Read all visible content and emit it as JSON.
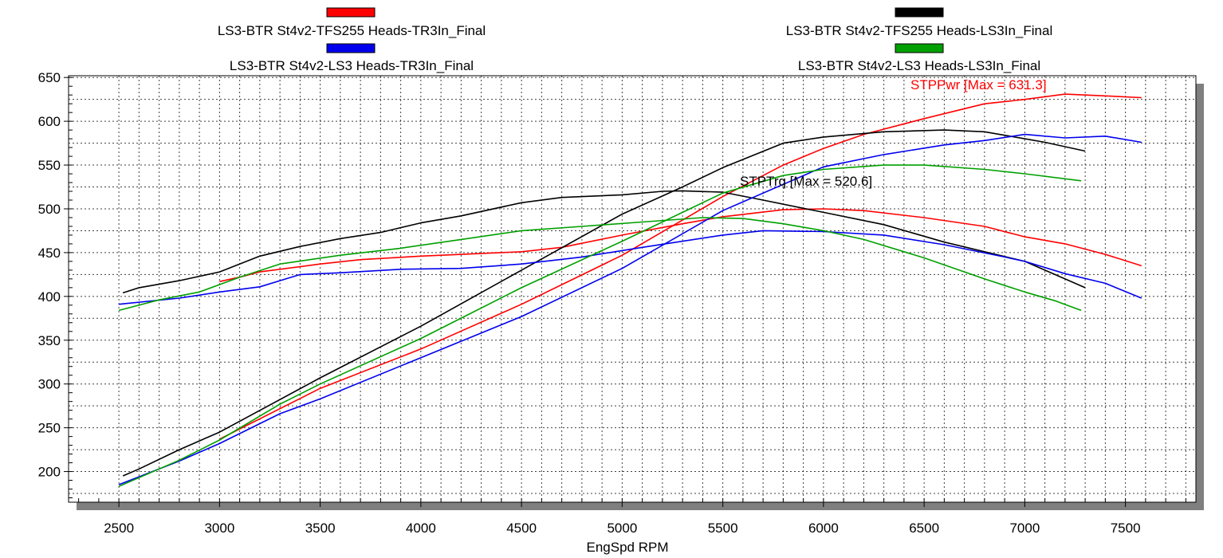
{
  "chart_data": {
    "type": "line",
    "title": "",
    "xlabel": "EngSpd RPM",
    "ylabel": "",
    "xlim": [
      2250,
      7850
    ],
    "ylim": [
      165,
      652
    ],
    "xticks": [
      2500,
      3000,
      3500,
      4000,
      4500,
      5000,
      5500,
      6000,
      6500,
      7000,
      7500
    ],
    "yticks": [
      200,
      250,
      300,
      350,
      400,
      450,
      500,
      550,
      600,
      650
    ],
    "grid": true,
    "legend_position": "top",
    "annotations": [
      {
        "text": "STPPwr [Max = 631.3]",
        "color": "#ff0000",
        "x": 7200,
        "y": 631.3
      },
      {
        "text": "STPTrq [Max = 520.6]",
        "color": "#000000",
        "x": 5300,
        "y": 520.6
      }
    ],
    "series": [
      {
        "name": "LS3-BTR St4v2-TFS255 Heads-TR3In_Final",
        "color": "#ff0000",
        "torque": {
          "x": [
            3000,
            3100,
            3200,
            3500,
            3700,
            4000,
            4500,
            4700,
            5000,
            5300,
            5500,
            5800,
            6000,
            6200,
            6500,
            6800,
            7000,
            7200,
            7400,
            7580
          ],
          "y": [
            417,
            422,
            428,
            437,
            442,
            446,
            451,
            456,
            470,
            483,
            491,
            499,
            500,
            498,
            490,
            480,
            468,
            460,
            448,
            435
          ]
        },
        "power": {
          "x": [
            3000,
            3500,
            4000,
            4500,
            5000,
            5500,
            5800,
            6000,
            6200,
            6500,
            6800,
            7000,
            7200,
            7400,
            7580
          ],
          "y": [
            237,
            295,
            340,
            391,
            447,
            514,
            550,
            569,
            585,
            603,
            620,
            625,
            631,
            629,
            627
          ]
        }
      },
      {
        "name": "LS3-BTR St4v2-TFS255 Heads-LS3In_Final",
        "color": "#000000",
        "torque": {
          "x": [
            2520,
            2600,
            2800,
            3000,
            3200,
            3400,
            3600,
            3800,
            4000,
            4200,
            4500,
            4700,
            5000,
            5200,
            5300,
            5500,
            5700,
            6000,
            6300,
            6600,
            7000,
            7200,
            7300
          ],
          "y": [
            404,
            410,
            418,
            428,
            446,
            457,
            466,
            473,
            484,
            492,
            507,
            513,
            516,
            520,
            520.6,
            519,
            510,
            496,
            482,
            462,
            440,
            420,
            410
          ]
        },
        "power": {
          "x": [
            2520,
            2600,
            2800,
            3000,
            3500,
            4000,
            4500,
            5000,
            5300,
            5500,
            5800,
            6000,
            6300,
            6600,
            6800,
            7000,
            7100,
            7300
          ],
          "y": [
            195,
            203,
            225,
            245,
            307,
            366,
            430,
            494,
            525,
            547,
            575,
            582,
            588,
            590,
            588,
            580,
            576,
            566
          ]
        }
      },
      {
        "name": "LS3-BTR St4v2-LS3 Heads-TR3In_Final",
        "color": "#0000ee",
        "torque": {
          "x": [
            2500,
            2800,
            3000,
            3200,
            3300,
            3400,
            3600,
            3900,
            4200,
            4500,
            4800,
            5100,
            5500,
            5700,
            6000,
            6300,
            6600,
            6900,
            7000,
            7200,
            7400,
            7580
          ],
          "y": [
            391,
            398,
            405,
            411,
            418,
            425,
            427,
            431,
            432,
            437,
            445,
            456,
            470,
            475,
            474,
            470,
            459,
            445,
            440,
            426,
            415,
            398
          ]
        },
        "power": {
          "x": [
            2500,
            2800,
            3000,
            3300,
            3500,
            4000,
            4500,
            5000,
            5500,
            6000,
            6300,
            6600,
            6800,
            7000,
            7200,
            7400,
            7580
          ],
          "y": [
            185,
            212,
            232,
            266,
            283,
            330,
            377,
            432,
            498,
            548,
            562,
            573,
            578,
            585,
            581,
            583,
            576
          ]
        }
      },
      {
        "name": "LS3-BTR St4v2-LS3 Heads-LS3In_Final",
        "color": "#00a000",
        "torque": {
          "x": [
            2500,
            2700,
            2900,
            3100,
            3300,
            3600,
            3900,
            4200,
            4500,
            4800,
            5100,
            5400,
            5600,
            5800,
            6000,
            6200,
            6500,
            6800,
            7000,
            7150,
            7280
          ],
          "y": [
            384,
            396,
            405,
            422,
            437,
            447,
            455,
            465,
            475,
            480,
            485,
            490,
            489,
            483,
            475,
            465,
            444,
            420,
            405,
            395,
            384
          ]
        },
        "power": {
          "x": [
            2500,
            2800,
            3000,
            3300,
            3500,
            4000,
            4500,
            5000,
            5500,
            5800,
            6000,
            6300,
            6500,
            6800,
            7000,
            7280
          ],
          "y": [
            183,
            213,
            236,
            277,
            300,
            352,
            410,
            463,
            518,
            538,
            545,
            550,
            550,
            545,
            540,
            532
          ]
        }
      }
    ]
  }
}
